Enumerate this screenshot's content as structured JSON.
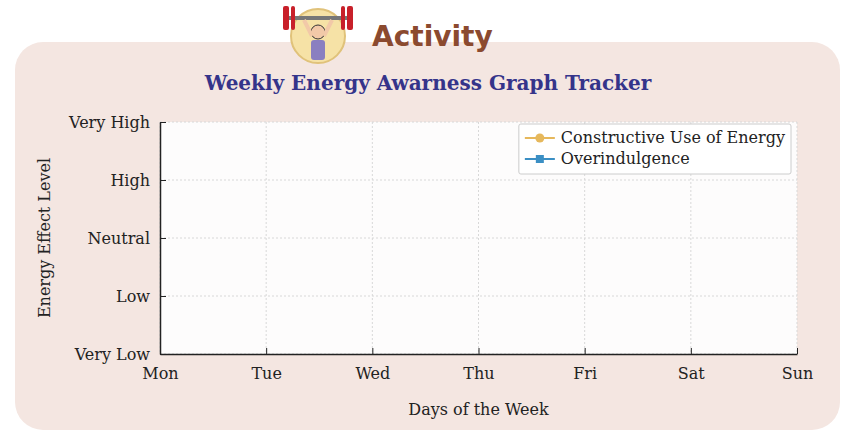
{
  "header": {
    "label": "Activity"
  },
  "chart_data": {
    "type": "line",
    "title": "Weekly Energy Awarness Graph Tracker",
    "x_label": "Days of the Week",
    "y_label": "Energy Effect Level",
    "categories": [
      "Mon",
      "Tue",
      "Wed",
      "Thu",
      "Fri",
      "Sat",
      "Sun"
    ],
    "series": [
      {
        "name": "Constructive Use of Energy",
        "color": "#e6b85c",
        "marker": "circle",
        "values": [
          null,
          null,
          null,
          null,
          null,
          null,
          null
        ]
      },
      {
        "name": "Overindulgence",
        "color": "#3b8fc4",
        "marker": "square",
        "values": [
          null,
          null,
          null,
          null,
          null,
          null,
          null
        ]
      }
    ],
    "ylim": [
      1,
      5
    ],
    "yticks": [
      {
        "value": 1,
        "label": "Very Low"
      },
      {
        "value": 2,
        "label": "Low"
      },
      {
        "value": 3,
        "label": "Neutral"
      },
      {
        "value": 4,
        "label": "High"
      },
      {
        "value": 5,
        "label": "Very High"
      }
    ],
    "grid": true,
    "legend": "upper right"
  }
}
